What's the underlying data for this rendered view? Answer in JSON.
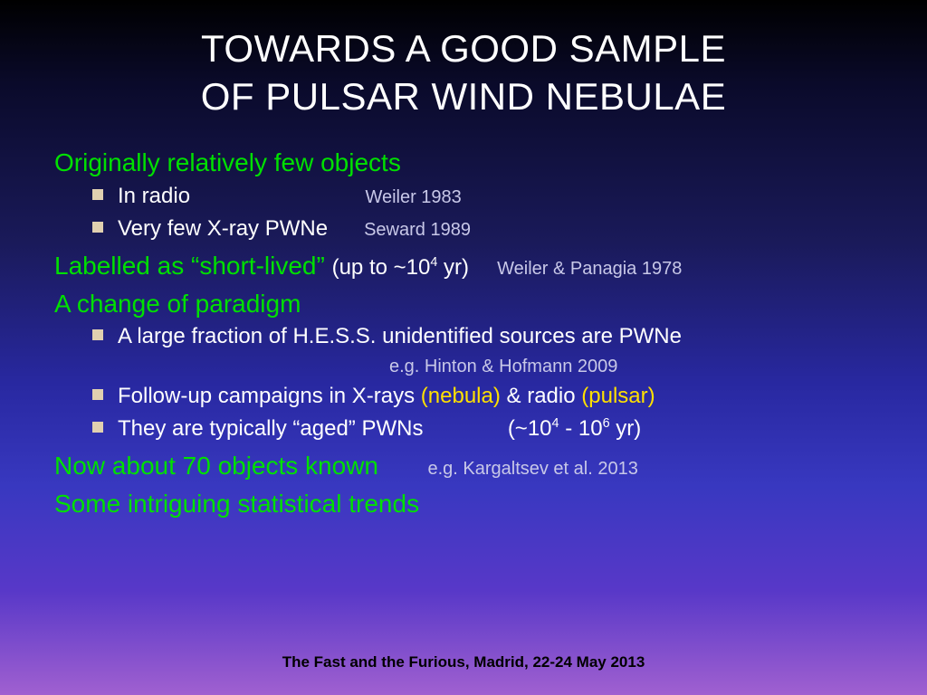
{
  "title_line1": "TOWARDS A GOOD SAMPLE",
  "title_line2": "OF PULSAR WIND NEBULAE",
  "sections": {
    "s1_heading": "Originally relatively few objects",
    "s1_item1_text": "In radio",
    "s1_item1_ref": "Weiler 1983",
    "s1_item2_text": "Very few X-ray PWNe",
    "s1_item2_ref": "Seward 1989",
    "s2_heading": "Labelled as “short-lived”",
    "s2_white_pre": "(up to ~10",
    "s2_sup": "4",
    "s2_white_post": " yr)",
    "s2_ref": "Weiler & Panagia 1978",
    "s3_heading": "A change of paradigm",
    "s3_item1_text": "A large fraction of H.E.S.S. unidentified sources are PWNe",
    "s3_item1_ref": "e.g. Hinton & Hofmann 2009",
    "s3_item2_pre": "Follow-up campaigns in X-rays ",
    "s3_item2_y1": "(nebula)",
    "s3_item2_mid": " & radio ",
    "s3_item2_y2": "(pulsar)",
    "s3_item3_pre": "They are typically “aged” PWNs",
    "s3_item3_gap": "              ",
    "s3_item3_range_pre": "(~10",
    "s3_item3_sup1": "4",
    "s3_item3_mid": " - 10",
    "s3_item3_sup2": "6",
    "s3_item3_post": " yr)",
    "s4_heading": "Now about 70 objects known",
    "s4_ref": "e.g. Kargaltsev et al. 2013",
    "s5_heading": "Some intriguing statistical trends"
  },
  "footer": "The Fast and the Furious, Madrid, 22-24 May 2013",
  "colors": {
    "title": "#ffffff",
    "heading_green": "#00e000",
    "body_white": "#ffffff",
    "ref_grey": "#c8c8e8",
    "highlight_yellow": "#ffe000",
    "bullet": "#e0d0b0",
    "footer": "#000000"
  },
  "fontsizes": {
    "title": 42,
    "heading": 28,
    "body": 24,
    "ref": 20,
    "footer": 17
  }
}
